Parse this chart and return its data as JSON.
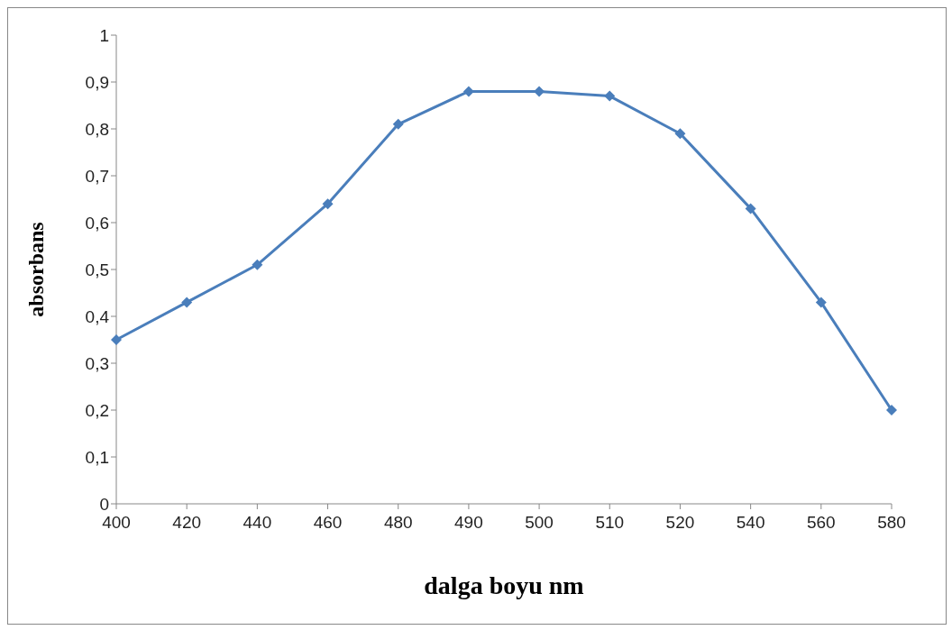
{
  "chart_data": {
    "type": "line",
    "xlabel": "dalga boyu nm",
    "ylabel": "absorbans",
    "categories": [
      "400",
      "420",
      "440",
      "460",
      "480",
      "490",
      "500",
      "510",
      "520",
      "540",
      "560",
      "580"
    ],
    "values": [
      0.35,
      0.43,
      0.51,
      0.64,
      0.81,
      0.88,
      0.88,
      0.87,
      0.79,
      0.63,
      0.43,
      0.2
    ],
    "color": "#4a7ebb",
    "marker": "diamond",
    "line_style": "solid",
    "grid": false,
    "legend": false,
    "ylim": [
      0,
      1
    ],
    "yticks": [
      0,
      {
        "value": 0.1,
        "label": "0,1"
      },
      {
        "value": 0.2,
        "label": "0,2"
      },
      {
        "value": 0.3,
        "label": "0,3"
      },
      {
        "value": 0.4,
        "label": "0,4"
      },
      {
        "value": 0.5,
        "label": "0,5"
      },
      {
        "value": 0.6,
        "label": "0,6"
      },
      {
        "value": 0.7,
        "label": "0,7"
      },
      {
        "value": 0.8,
        "label": "0,8"
      },
      {
        "value": 0.9,
        "label": "0,9"
      },
      1
    ]
  }
}
